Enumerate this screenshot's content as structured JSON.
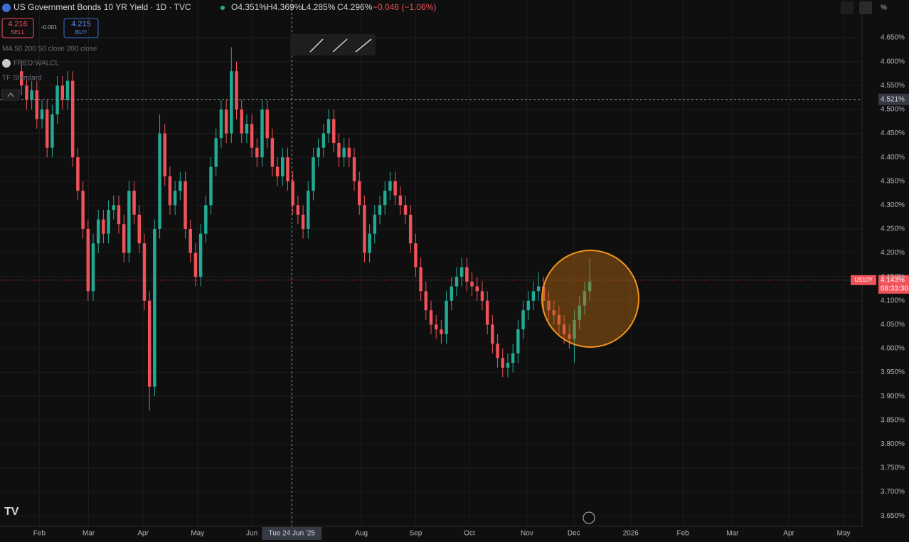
{
  "header": {
    "title": "US Government Bonds 10 YR Yield · 1D · TVC",
    "open": "O4.351%",
    "high": "H4.369%",
    "low": "L4.285%",
    "close": "C4.296%",
    "change": "−0.046 (−1.06%)",
    "sell_price": "4.216",
    "sell": "SELL",
    "spread": "-0.001",
    "buy_price": "4.215",
    "buy": "BUY",
    "indicators": [
      "MA 50 200 50 close 200 close",
      "FRED:WALCL",
      "TF Standard"
    ],
    "unit": "%"
  },
  "chart_data": {
    "type": "candlestick",
    "up_color": "#22ab94",
    "down_color": "#f0525a",
    "grid": true,
    "open": [
      4.58,
      4.55,
      4.52,
      4.54,
      4.48,
      4.5,
      4.42,
      4.49,
      4.55,
      4.52,
      4.56,
      4.4,
      4.33,
      4.25,
      4.12,
      4.22,
      4.27,
      4.24,
      4.29,
      4.3,
      4.26,
      4.2,
      4.33,
      4.28,
      4.22,
      4.1,
      3.92,
      4.25,
      4.45,
      4.36,
      4.3,
      4.33,
      4.35,
      4.25,
      4.2,
      4.15,
      4.24,
      4.3,
      4.38,
      4.44,
      4.5,
      4.45,
      4.58,
      4.5,
      4.45,
      4.47,
      4.42,
      4.4,
      4.5,
      4.44,
      4.38,
      4.36,
      4.4,
      4.35,
      4.3,
      4.28,
      4.25,
      4.33,
      4.4,
      4.42,
      4.45,
      4.48,
      4.43,
      4.4,
      4.42,
      4.4,
      4.35,
      4.3,
      4.2,
      4.24,
      4.28,
      4.3,
      4.33,
      4.35,
      4.32,
      4.3,
      4.28,
      4.22,
      4.17,
      4.12,
      4.08,
      4.05,
      4.04,
      4.03,
      4.1,
      4.13,
      4.15,
      4.17,
      4.14,
      4.13,
      4.12,
      4.1,
      4.05,
      4.01,
      3.98,
      3.96,
      3.97,
      3.99,
      4.04,
      4.08,
      4.1,
      4.12,
      4.13,
      4.1,
      4.08,
      4.07,
      4.05,
      4.03,
      4.02,
      4.06,
      4.09,
      4.12
    ],
    "high": [
      4.6,
      4.57,
      4.56,
      4.56,
      4.52,
      4.52,
      4.51,
      4.57,
      4.57,
      4.58,
      4.58,
      4.42,
      4.35,
      4.27,
      4.24,
      4.29,
      4.29,
      4.31,
      4.32,
      4.32,
      4.28,
      4.35,
      4.35,
      4.3,
      4.24,
      4.12,
      4.27,
      4.49,
      4.47,
      4.38,
      4.35,
      4.37,
      4.37,
      4.27,
      4.22,
      4.26,
      4.32,
      4.4,
      4.46,
      4.52,
      4.52,
      4.63,
      4.6,
      4.52,
      4.49,
      4.49,
      4.44,
      4.52,
      4.52,
      4.46,
      4.4,
      4.42,
      4.42,
      4.37,
      4.32,
      4.3,
      4.35,
      4.42,
      4.44,
      4.47,
      4.5,
      4.5,
      4.45,
      4.44,
      4.44,
      4.42,
      4.37,
      4.32,
      4.26,
      4.3,
      4.32,
      4.35,
      4.37,
      4.37,
      4.34,
      4.32,
      4.3,
      4.24,
      4.19,
      4.14,
      4.1,
      4.07,
      4.06,
      4.12,
      4.15,
      4.17,
      4.19,
      4.19,
      4.16,
      4.15,
      4.14,
      4.12,
      4.07,
      4.03,
      4.0,
      3.99,
      4.01,
      4.06,
      4.1,
      4.12,
      4.14,
      4.16,
      4.15,
      4.12,
      4.1,
      4.09,
      4.07,
      4.05,
      4.08,
      4.11,
      4.14,
      4.19
    ],
    "low": [
      4.53,
      4.5,
      4.5,
      4.46,
      4.46,
      4.4,
      4.4,
      4.47,
      4.5,
      4.5,
      4.38,
      4.31,
      4.23,
      4.1,
      4.1,
      4.2,
      4.22,
      4.22,
      4.27,
      4.24,
      4.18,
      4.18,
      4.26,
      4.2,
      4.08,
      3.87,
      3.9,
      4.23,
      4.34,
      4.28,
      4.28,
      4.31,
      4.23,
      4.18,
      4.13,
      4.13,
      4.22,
      4.28,
      4.36,
      4.42,
      4.43,
      4.43,
      4.48,
      4.43,
      4.43,
      4.4,
      4.38,
      4.38,
      4.42,
      4.36,
      4.34,
      4.34,
      4.33,
      4.28,
      4.26,
      4.23,
      4.23,
      4.31,
      4.38,
      4.4,
      4.43,
      4.41,
      4.38,
      4.38,
      4.38,
      4.33,
      4.28,
      4.18,
      4.18,
      4.22,
      4.26,
      4.28,
      4.31,
      4.3,
      4.28,
      4.26,
      4.2,
      4.15,
      4.1,
      4.06,
      4.03,
      4.02,
      4.01,
      4.01,
      4.08,
      4.11,
      4.13,
      4.12,
      4.11,
      4.1,
      4.08,
      4.03,
      3.99,
      3.96,
      3.94,
      3.94,
      3.95,
      3.97,
      4.02,
      4.06,
      4.08,
      4.1,
      4.08,
      4.06,
      4.05,
      4.03,
      4.01,
      4.0,
      3.97,
      4.04,
      4.07,
      4.1
    ],
    "close": [
      4.55,
      4.52,
      4.54,
      4.48,
      4.5,
      4.42,
      4.49,
      4.55,
      4.52,
      4.56,
      4.4,
      4.33,
      4.25,
      4.12,
      4.22,
      4.27,
      4.24,
      4.29,
      4.3,
      4.26,
      4.2,
      4.33,
      4.28,
      4.22,
      4.1,
      3.92,
      4.25,
      4.45,
      4.36,
      4.3,
      4.33,
      4.35,
      4.25,
      4.2,
      4.15,
      4.24,
      4.3,
      4.38,
      4.44,
      4.5,
      4.45,
      4.58,
      4.5,
      4.45,
      4.47,
      4.42,
      4.4,
      4.5,
      4.44,
      4.38,
      4.36,
      4.4,
      4.35,
      4.3,
      4.28,
      4.25,
      4.33,
      4.4,
      4.42,
      4.45,
      4.48,
      4.43,
      4.4,
      4.42,
      4.4,
      4.35,
      4.3,
      4.2,
      4.24,
      4.28,
      4.3,
      4.33,
      4.35,
      4.32,
      4.3,
      4.28,
      4.22,
      4.17,
      4.12,
      4.08,
      4.05,
      4.04,
      4.03,
      4.1,
      4.13,
      4.15,
      4.17,
      4.14,
      4.13,
      4.12,
      4.1,
      4.05,
      4.01,
      3.98,
      3.96,
      3.97,
      3.99,
      4.04,
      4.08,
      4.1,
      4.12,
      4.13,
      4.1,
      4.08,
      4.07,
      4.05,
      4.03,
      4.02,
      4.06,
      4.09,
      4.12,
      4.14
    ],
    "xlim": [
      -4.2,
      164.2
    ],
    "ylim": [
      3.628,
      4.729
    ],
    "xticks": [
      {
        "value": 3.5,
        "label": "Feb"
      },
      {
        "value": 13.1,
        "label": "Mar"
      },
      {
        "value": 23.75,
        "label": "Apr"
      },
      {
        "value": 34.4,
        "label": "May"
      },
      {
        "value": 45,
        "label": "Jun"
      },
      {
        "value": 66.4,
        "label": "Aug"
      },
      {
        "value": 77,
        "label": "Sep"
      },
      {
        "value": 87.5,
        "label": "Oct"
      },
      {
        "value": 98.75,
        "label": "Nov"
      },
      {
        "value": 107.9,
        "label": "Dec"
      },
      {
        "value": 119,
        "label": "2026"
      },
      {
        "value": 129.2,
        "label": "Feb"
      },
      {
        "value": 138.9,
        "label": "Mar"
      },
      {
        "value": 149.9,
        "label": "Apr"
      },
      {
        "value": 160.6,
        "label": "May"
      }
    ],
    "yticks": [
      {
        "value": 3.65,
        "label": "3.650%"
      },
      {
        "value": 3.7,
        "label": "3.700%"
      },
      {
        "value": 3.75,
        "label": "3.750%"
      },
      {
        "value": 3.8,
        "label": "3.800%"
      },
      {
        "value": 3.85,
        "label": "3.850%"
      },
      {
        "value": 3.9,
        "label": "3.900%"
      },
      {
        "value": 3.95,
        "label": "3.950%"
      },
      {
        "value": 4.0,
        "label": "4.000%"
      },
      {
        "value": 4.05,
        "label": "4.050%"
      },
      {
        "value": 4.1,
        "label": "4.100%"
      },
      {
        "value": 4.15,
        "label": "4.150%"
      },
      {
        "value": 4.2,
        "label": "4.200%"
      },
      {
        "value": 4.25,
        "label": "4.250%"
      },
      {
        "value": 4.3,
        "label": "4.300%"
      },
      {
        "value": 4.35,
        "label": "4.350%"
      },
      {
        "value": 4.4,
        "label": "4.400%"
      },
      {
        "value": 4.45,
        "label": "4.450%"
      },
      {
        "value": 4.5,
        "label": "4.500%"
      },
      {
        "value": 4.55,
        "label": "4.550%"
      },
      {
        "value": 4.6,
        "label": "4.600%"
      },
      {
        "value": 4.65,
        "label": "4.650%"
      }
    ],
    "last_price": {
      "value": 4.143,
      "label": "4.143%",
      "symbol": "US10Y",
      "countdown": "08:33:30"
    },
    "crosshair": {
      "x": 52.8,
      "x_label": "Tue 24 Jun '25",
      "y": 4.521,
      "y_label": "4.521%"
    }
  }
}
